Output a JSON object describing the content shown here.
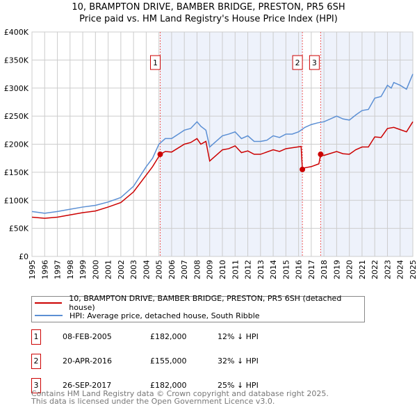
{
  "title_line1": "10, BRAMPTON DRIVE, BAMBER BRIDGE, PRESTON, PR5 6SH",
  "title_line2": "Price paid vs. HM Land Registry's House Price Index (HPI)",
  "colors": {
    "property": "#cc0000",
    "hpi": "#5b8fd4",
    "shade": "#eef2fb"
  },
  "chart_data": {
    "type": "line",
    "title": "Price paid vs. HM Land Registry's House Price Index (HPI)",
    "xlim": [
      1995,
      2025
    ],
    "ylim": [
      0,
      400000
    ],
    "yticks": [
      {
        "v": 0,
        "label": "£0"
      },
      {
        "v": 50000,
        "label": "£50K"
      },
      {
        "v": 100000,
        "label": "£100K"
      },
      {
        "v": 150000,
        "label": "£150K"
      },
      {
        "v": 200000,
        "label": "£200K"
      },
      {
        "v": 250000,
        "label": "£250K"
      },
      {
        "v": 300000,
        "label": "£300K"
      },
      {
        "v": 350000,
        "label": "£350K"
      },
      {
        "v": 400000,
        "label": "£400K"
      }
    ],
    "xticks": [
      "1995",
      "1996",
      "1997",
      "1998",
      "1999",
      "2000",
      "2001",
      "2002",
      "2003",
      "2004",
      "2005",
      "2006",
      "2007",
      "2008",
      "2009",
      "2010",
      "2011",
      "2012",
      "2013",
      "2014",
      "2015",
      "2016",
      "2017",
      "2018",
      "2019",
      "2020",
      "2021",
      "2022",
      "2023",
      "2024",
      "2025"
    ],
    "series": [
      {
        "name": "10, BRAMPTON DRIVE, BAMBER BRIDGE, PRESTON, PR5 6SH (detached house)",
        "color": "#cc0000",
        "x": [
          1995,
          1996,
          1997,
          1998,
          1999,
          2000,
          2001,
          2002,
          2003,
          2004,
          2004.5,
          2005.1,
          2005.5,
          2006,
          2007,
          2007.5,
          2008,
          2008.3,
          2008.7,
          2009,
          2009.5,
          2010,
          2010.5,
          2011,
          2011.5,
          2012,
          2012.5,
          2013,
          2014,
          2014.5,
          2015,
          2016.2,
          2016.3,
          2016.5,
          2017,
          2017.6,
          2017.74,
          2018,
          2019,
          2019.5,
          2020,
          2020.5,
          2021,
          2021.5,
          2022,
          2022.5,
          2023,
          2023.5,
          2024,
          2024.5,
          2025
        ],
        "y": [
          70000,
          68000,
          70000,
          74000,
          78000,
          81000,
          88000,
          96000,
          115000,
          145000,
          160000,
          182000,
          187000,
          186000,
          200000,
          203000,
          210000,
          200000,
          205000,
          170000,
          180000,
          190000,
          192000,
          197000,
          185000,
          188000,
          182000,
          182000,
          190000,
          187000,
          192000,
          196000,
          155000,
          158000,
          160000,
          165000,
          182000,
          180000,
          187000,
          183000,
          182000,
          190000,
          195000,
          195000,
          213000,
          212000,
          228000,
          230000,
          226000,
          222000,
          240000
        ]
      },
      {
        "name": "HPI: Average price, detached house, South Ribble",
        "color": "#5b8fd4",
        "x": [
          1995,
          1996,
          1997,
          1998,
          1999,
          2000,
          2001,
          2002,
          2003,
          2004,
          2004.5,
          2005,
          2005.5,
          2006,
          2007,
          2007.5,
          2008,
          2008.3,
          2008.7,
          2009,
          2009.5,
          2010,
          2010.5,
          2011,
          2011.5,
          2012,
          2012.5,
          2013,
          2013.5,
          2014,
          2014.5,
          2015,
          2015.5,
          2016,
          2016.5,
          2017,
          2017.5,
          2018,
          2018.5,
          2019,
          2019.5,
          2020,
          2020.5,
          2021,
          2021.5,
          2022,
          2022.5,
          2023,
          2023.3,
          2023.5,
          2024,
          2024.5,
          2025
        ],
        "y": [
          80000,
          77000,
          80000,
          84000,
          88000,
          91000,
          97000,
          105000,
          125000,
          160000,
          175000,
          200000,
          210000,
          210000,
          225000,
          228000,
          240000,
          232000,
          225000,
          195000,
          205000,
          215000,
          218000,
          222000,
          210000,
          215000,
          205000,
          205000,
          207000,
          215000,
          212000,
          218000,
          218000,
          222000,
          230000,
          235000,
          238000,
          240000,
          245000,
          250000,
          245000,
          243000,
          252000,
          260000,
          262000,
          282000,
          285000,
          305000,
          300000,
          310000,
          305000,
          298000,
          325000
        ]
      }
    ],
    "sales": [
      {
        "label": "1",
        "x": 2005.1,
        "y": 182000,
        "date": "08-FEB-2005",
        "price": "£182,000",
        "hpi": "12% ↓ HPI"
      },
      {
        "label": "2",
        "x": 2016.3,
        "y": 155000,
        "date": "20-APR-2016",
        "price": "£155,000",
        "hpi": "32% ↓ HPI"
      },
      {
        "label": "3",
        "x": 2017.74,
        "y": 182000,
        "date": "26-SEP-2017",
        "price": "£182,000",
        "hpi": "25% ↓ HPI"
      }
    ],
    "grid": true
  },
  "legend": {
    "property": "10, BRAMPTON DRIVE, BAMBER BRIDGE, PRESTON, PR5 6SH (detached house)",
    "hpi": "HPI: Average price, detached house, South Ribble"
  },
  "footer": {
    "line1": "Contains HM Land Registry data © Crown copyright and database right 2025.",
    "line2": "This data is licensed under the Open Government Licence v3.0."
  }
}
